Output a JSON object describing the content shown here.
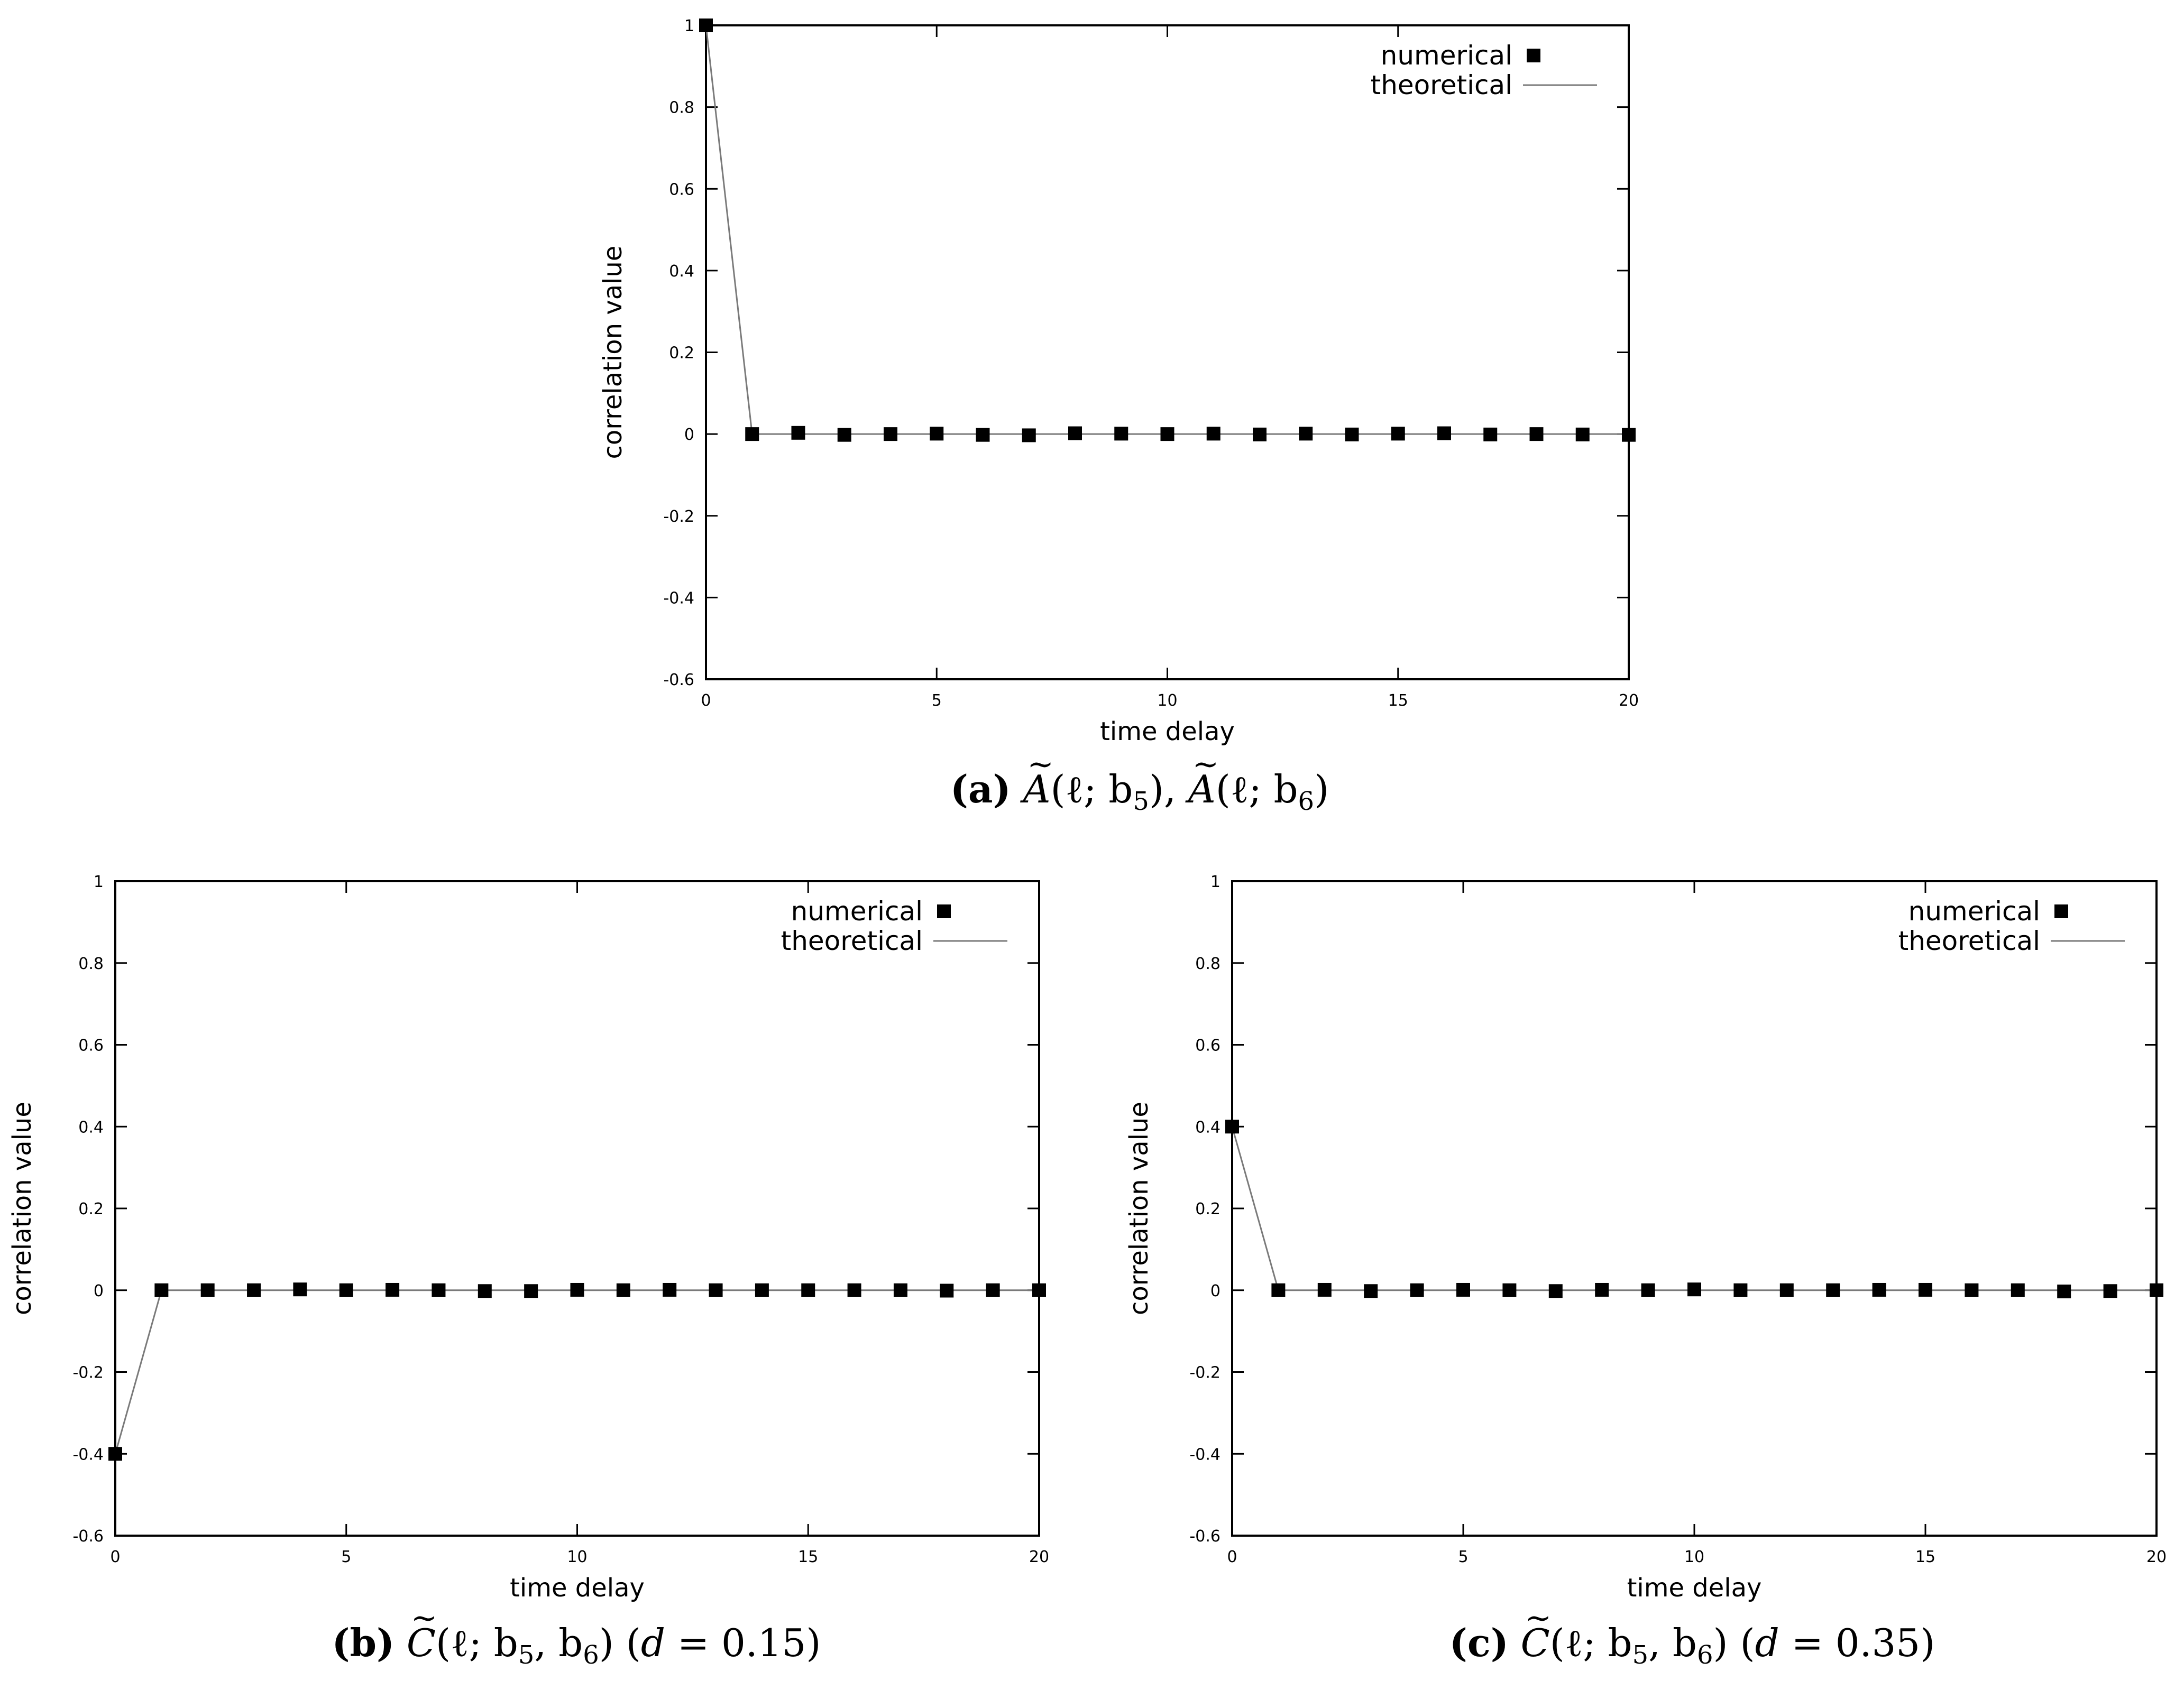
{
  "chart_data": [
    {
      "type": "scatter",
      "xlabel": "time delay",
      "ylabel": "correlation value",
      "xlim": [
        0,
        20
      ],
      "ylim": [
        -0.6,
        1
      ],
      "xticks": [
        "0",
        "5",
        "10",
        "15",
        "20"
      ],
      "yticks": [
        "-0.6",
        "-0.4",
        "-0.2",
        "0",
        "0.2",
        "0.4",
        "0.6",
        "0.8",
        "1"
      ],
      "legend_position": "top-right",
      "caption": {
        "label": "(a)",
        "text_parts": [
          "A",
          "(ℓ; b",
          "5",
          "), ",
          "A",
          "(ℓ; b",
          "6",
          ")"
        ]
      },
      "series": [
        {
          "name": "numerical",
          "marker": "square",
          "x": [
            0,
            1,
            2,
            3,
            4,
            5,
            6,
            7,
            8,
            9,
            10,
            11,
            12,
            13,
            14,
            15,
            16,
            17,
            18,
            19,
            20
          ],
          "y": [
            1,
            0,
            0.003,
            -0.002,
            0,
            0.001,
            -0.002,
            -0.003,
            0.002,
            0.001,
            0,
            0.001,
            -0.001,
            0.001,
            -0.001,
            0.001,
            0.002,
            -0.001,
            0,
            -0.001,
            -0.002
          ]
        },
        {
          "name": "theoretical",
          "marker": "line",
          "x": [
            0,
            1,
            2,
            3,
            4,
            5,
            6,
            7,
            8,
            9,
            10,
            11,
            12,
            13,
            14,
            15,
            16,
            17,
            18,
            19,
            20
          ],
          "y": [
            1,
            0,
            0,
            0,
            0,
            0,
            0,
            0,
            0,
            0,
            0,
            0,
            0,
            0,
            0,
            0,
            0,
            0,
            0,
            0,
            0
          ]
        }
      ]
    },
    {
      "type": "scatter",
      "xlabel": "time delay",
      "ylabel": "correlation value",
      "xlim": [
        0,
        20
      ],
      "ylim": [
        -0.6,
        1
      ],
      "xticks": [
        "0",
        "5",
        "10",
        "15",
        "20"
      ],
      "yticks": [
        "-0.6",
        "-0.4",
        "-0.2",
        "0",
        "0.2",
        "0.4",
        "0.6",
        "0.8",
        "1"
      ],
      "legend_position": "top-right",
      "caption": {
        "label": "(b)",
        "text_parts": [
          "C",
          "(ℓ; b",
          "5",
          ", b",
          "6",
          ") (",
          "d",
          " = 0.15)"
        ]
      },
      "series": [
        {
          "name": "numerical",
          "marker": "square",
          "x": [
            0,
            1,
            2,
            3,
            4,
            5,
            6,
            7,
            8,
            9,
            10,
            11,
            12,
            13,
            14,
            15,
            16,
            17,
            18,
            19,
            20
          ],
          "y": [
            -0.4,
            0,
            0,
            0,
            0.002,
            0,
            0.001,
            0,
            -0.002,
            -0.002,
            0.001,
            0,
            0.001,
            0,
            0,
            0,
            0,
            0,
            -0.001,
            0,
            0
          ]
        },
        {
          "name": "theoretical",
          "marker": "line",
          "x": [
            0,
            1,
            2,
            3,
            4,
            5,
            6,
            7,
            8,
            9,
            10,
            11,
            12,
            13,
            14,
            15,
            16,
            17,
            18,
            19,
            20
          ],
          "y": [
            -0.4,
            0,
            0,
            0,
            0,
            0,
            0,
            0,
            0,
            0,
            0,
            0,
            0,
            0,
            0,
            0,
            0,
            0,
            0,
            0,
            0
          ]
        }
      ]
    },
    {
      "type": "scatter",
      "xlabel": "time delay",
      "ylabel": "correlation value",
      "xlim": [
        0,
        20
      ],
      "ylim": [
        -0.6,
        1
      ],
      "xticks": [
        "0",
        "5",
        "10",
        "15",
        "20"
      ],
      "yticks": [
        "-0.6",
        "-0.4",
        "-0.2",
        "0",
        "0.2",
        "0.4",
        "0.6",
        "0.8",
        "1"
      ],
      "legend_position": "top-right",
      "caption": {
        "label": "(c)",
        "text_parts": [
          "C",
          "(ℓ; b",
          "5",
          ", b",
          "6",
          ") (",
          "d",
          " = 0.35)"
        ]
      },
      "series": [
        {
          "name": "numerical",
          "marker": "square",
          "x": [
            0,
            1,
            2,
            3,
            4,
            5,
            6,
            7,
            8,
            9,
            10,
            11,
            12,
            13,
            14,
            15,
            16,
            17,
            18,
            19,
            20
          ],
          "y": [
            0.4,
            0,
            0.001,
            -0.002,
            0,
            0.001,
            0,
            -0.002,
            0.001,
            0,
            0.002,
            0,
            0,
            0,
            0.001,
            0.001,
            0,
            0,
            -0.003,
            -0.002,
            0
          ]
        },
        {
          "name": "theoretical",
          "marker": "line",
          "x": [
            0,
            1,
            2,
            3,
            4,
            5,
            6,
            7,
            8,
            9,
            10,
            11,
            12,
            13,
            14,
            15,
            16,
            17,
            18,
            19,
            20
          ],
          "y": [
            0.4,
            0,
            0,
            0,
            0,
            0,
            0,
            0,
            0,
            0,
            0,
            0,
            0,
            0,
            0,
            0,
            0,
            0,
            0,
            0,
            0
          ]
        }
      ]
    }
  ]
}
